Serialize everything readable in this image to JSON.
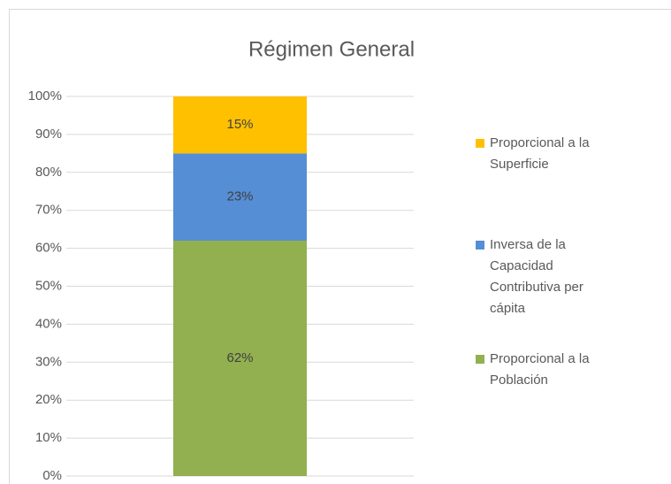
{
  "chart_data": {
    "type": "stacked_bar",
    "title": "Régimen General",
    "categories": [
      null
    ],
    "series": [
      {
        "name": "Proporcional a la Población",
        "color": "#92b04f",
        "values": [
          62
        ],
        "value_labels": [
          "62%"
        ]
      },
      {
        "name": "Inversa de la Capacidad Contributiva per cápita",
        "color": "#558ed5",
        "values": [
          23
        ],
        "value_labels": [
          "23%"
        ]
      },
      {
        "name": "Proporcional a la Superficie",
        "color": "#ffc000",
        "values": [
          15
        ],
        "value_labels": [
          "15%"
        ]
      }
    ],
    "ylim": [
      0,
      100
    ],
    "yticks": [
      {
        "value": 0,
        "label": "0%"
      },
      {
        "value": 10,
        "label": "10%"
      },
      {
        "value": 20,
        "label": "20%"
      },
      {
        "value": 30,
        "label": "30%"
      },
      {
        "value": 40,
        "label": "40%"
      },
      {
        "value": 50,
        "label": "50%"
      },
      {
        "value": 60,
        "label": "60%"
      },
      {
        "value": 70,
        "label": "70%"
      },
      {
        "value": 80,
        "label": "80%"
      },
      {
        "value": 90,
        "label": "90%"
      },
      {
        "value": 100,
        "label": "100%"
      }
    ],
    "grid": true,
    "legend": "right"
  }
}
